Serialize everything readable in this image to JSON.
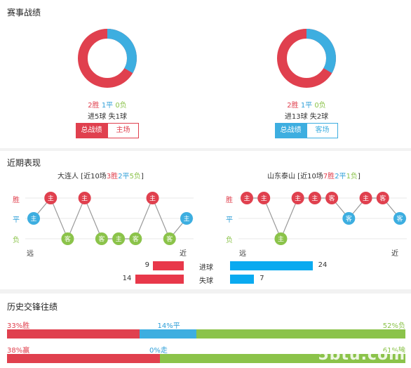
{
  "record": {
    "title": "赛事战绩",
    "left": {
      "wins": "2胜",
      "draws": "1平",
      "losses": "0负",
      "goals": "进5球 失1球",
      "tab_active": "总战绩",
      "tab_other": "主场",
      "win_frac": 0.6667
    },
    "right": {
      "wins": "2胜",
      "draws": "1平",
      "losses": "0负",
      "goals": "进13球 失2球",
      "tab_active": "总战绩",
      "tab_other": "客场",
      "win_frac": 0.6667
    },
    "colors": {
      "win": "#e0404e",
      "draw": "#3daee0",
      "loss": "#8bc34a"
    }
  },
  "recent": {
    "title": "近期表现",
    "left_team": {
      "name": "大连人",
      "prefix": " [近10场",
      "w": "3胜",
      "d": "2平",
      "l": "5负",
      "suffix": "]"
    },
    "right_team": {
      "name": "山东泰山",
      "prefix": " [近10场",
      "w": "7胜",
      "d": "2平",
      "l": "1负",
      "suffix": "]"
    },
    "y_labels": [
      "胜",
      "平",
      "负"
    ],
    "far": "远",
    "near": "近",
    "left_points": [
      {
        "level": 1,
        "text": "主"
      },
      {
        "level": 2,
        "text": "主"
      },
      {
        "level": 0,
        "text": "客"
      },
      {
        "level": 2,
        "text": "主"
      },
      {
        "level": 0,
        "text": "客"
      },
      {
        "level": 0,
        "text": "主"
      },
      {
        "level": 0,
        "text": "客"
      },
      {
        "level": 2,
        "text": "主"
      },
      {
        "level": 0,
        "text": "客"
      },
      {
        "level": 1,
        "text": "主"
      }
    ],
    "right_points": [
      {
        "level": 2,
        "text": "主"
      },
      {
        "level": 2,
        "text": "主"
      },
      {
        "level": 0,
        "text": "主"
      },
      {
        "level": 2,
        "text": "主"
      },
      {
        "level": 2,
        "text": "主"
      },
      {
        "level": 2,
        "text": "客"
      },
      {
        "level": 1,
        "text": "客"
      },
      {
        "level": 2,
        "text": "主"
      },
      {
        "level": 2,
        "text": "客"
      },
      {
        "level": 1,
        "text": "客"
      }
    ],
    "goals_label": "进球",
    "conceded_label": "失球",
    "left_goals": "9",
    "left_conceded": "14",
    "right_goals": "24",
    "right_conceded": "7",
    "left_goals_value": 9,
    "left_conceded_value": 14,
    "right_goals_value": 24,
    "right_conceded_value": 7
  },
  "history": {
    "title": "历史交锋往绩",
    "row1": {
      "left": "33%胜",
      "mid": "14%平",
      "right": "52%负",
      "a": 33,
      "b": 14,
      "c": 52
    },
    "row2": {
      "left": "38%赢",
      "mid": "0%走",
      "right": "61%输",
      "a": 38,
      "b": 0,
      "c": 61
    }
  },
  "watermark": "5btu.com"
}
